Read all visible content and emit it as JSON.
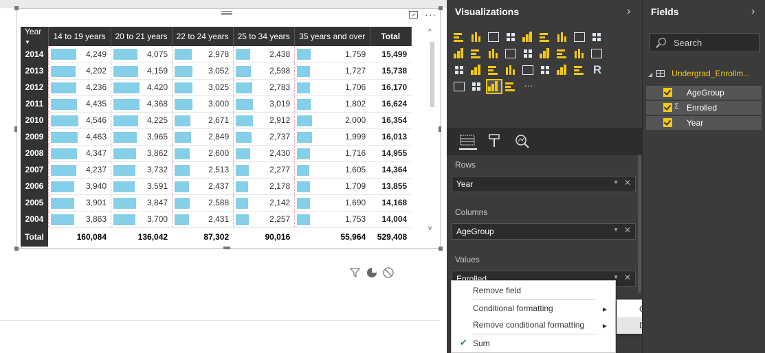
{
  "matrix": {
    "headers": [
      "Year",
      "14 to 19 years",
      "20 to 21 years",
      "22 to 24 years",
      "25 to 34 years",
      "35 years and over",
      "Total"
    ],
    "rows": [
      {
        "year": "2014",
        "v": [
          "4,249",
          "4,075",
          "2,978",
          "2,438",
          "1,759"
        ],
        "total": "15,499",
        "f": [
          0.93,
          0.92,
          0.66,
          0.54,
          0.4
        ]
      },
      {
        "year": "2013",
        "v": [
          "4,202",
          "4,159",
          "3,052",
          "2,598",
          "1,727"
        ],
        "total": "15,738",
        "f": [
          0.92,
          0.94,
          0.68,
          0.58,
          0.39
        ]
      },
      {
        "year": "2012",
        "v": [
          "4,236",
          "4,420",
          "3,025",
          "2,783",
          "1,706"
        ],
        "total": "16,170",
        "f": [
          0.93,
          1.0,
          0.67,
          0.62,
          0.38
        ]
      },
      {
        "year": "2011",
        "v": [
          "4,435",
          "4,368",
          "3,000",
          "3,019",
          "1,802"
        ],
        "total": "16,624",
        "f": [
          0.97,
          0.99,
          0.67,
          0.67,
          0.41
        ]
      },
      {
        "year": "2010",
        "v": [
          "4,546",
          "4,225",
          "2,671",
          "2,912",
          "2,000"
        ],
        "total": "16,354",
        "f": [
          1.0,
          0.96,
          0.59,
          0.65,
          0.45
        ]
      },
      {
        "year": "2009",
        "v": [
          "4,463",
          "3,965",
          "2,849",
          "2,737",
          "1,999"
        ],
        "total": "16,013",
        "f": [
          0.98,
          0.9,
          0.63,
          0.61,
          0.45
        ]
      },
      {
        "year": "2008",
        "v": [
          "4,347",
          "3,862",
          "2,600",
          "2,430",
          "1,716"
        ],
        "total": "14,955",
        "f": [
          0.95,
          0.87,
          0.58,
          0.54,
          0.39
        ]
      },
      {
        "year": "2007",
        "v": [
          "4,237",
          "3,732",
          "2,513",
          "2,277",
          "1,605"
        ],
        "total": "14,364",
        "f": [
          0.93,
          0.84,
          0.56,
          0.5,
          0.36
        ]
      },
      {
        "year": "2006",
        "v": [
          "3,940",
          "3,591",
          "2,437",
          "2,178",
          "1,709"
        ],
        "total": "13,855",
        "f": [
          0.87,
          0.81,
          0.54,
          0.48,
          0.38
        ]
      },
      {
        "year": "2005",
        "v": [
          "3,901",
          "3,847",
          "2,588",
          "2,142",
          "1,690"
        ],
        "total": "14,168",
        "f": [
          0.86,
          0.87,
          0.58,
          0.47,
          0.38
        ]
      },
      {
        "year": "2004",
        "v": [
          "3,863",
          "3,700",
          "2,431",
          "2,257",
          "1,753"
        ],
        "total": "14,004",
        "f": [
          0.85,
          0.84,
          0.54,
          0.5,
          0.39
        ]
      }
    ],
    "totals": {
      "label": "Total",
      "v": [
        "160,084",
        "136,042",
        "87,302",
        "90,016",
        "55,964"
      ],
      "grand": "529,408"
    }
  },
  "colors": {
    "data_bar": "#86cfe9",
    "accent": "#f2c811",
    "pane_bg": "#3b3b3b"
  },
  "visualizations": {
    "title": "Visualizations",
    "icons": [
      "stacked-bar-icon",
      "stacked-column-icon",
      "clustered-bar-icon",
      "clustered-column-icon",
      "100-stacked-bar-icon",
      "100-stacked-column-icon",
      "line-chart-icon",
      "area-chart-icon",
      "stacked-area-icon",
      "line-column-icon",
      "line-clustered-column-icon",
      "ribbon-chart-icon",
      "scatter-icon",
      "pie-icon",
      "treemap-icon",
      "map-icon",
      "table-icon",
      "matrix-icon",
      "waterfall-icon",
      "funnel-icon",
      "gauge-icon",
      "card-icon",
      "multirow-card-icon",
      "kpi-icon",
      "slicer-icon",
      "donut-icon",
      "r-visual-icon",
      "filled-map-icon",
      "table-visual-icon",
      "matrix-visual-icon",
      "globe-icon",
      "more-icon"
    ],
    "tabs": [
      "fields-tab-icon",
      "format-tab-icon",
      "analytics-tab-icon"
    ],
    "wells": {
      "rows_label": "Rows",
      "rows_value": "Year",
      "columns_label": "Columns",
      "columns_value": "AgeGroup",
      "values_label": "Values",
      "values_value": "Enrolled"
    }
  },
  "context_menu": {
    "items": [
      "Remove field",
      "Conditional formatting",
      "Remove conditional formatting",
      "Sum"
    ],
    "submenu": [
      "Color scales",
      "Data bars"
    ],
    "hovered_submenu": "Data bars"
  },
  "fields": {
    "title": "Fields",
    "search_placeholder": "Search",
    "table_name": "Undergrad_Enrollm...",
    "items": [
      {
        "label": "AgeGroup",
        "sigma": ""
      },
      {
        "label": "Enrolled",
        "sigma": "Σ"
      },
      {
        "label": "Year",
        "sigma": ""
      }
    ]
  }
}
